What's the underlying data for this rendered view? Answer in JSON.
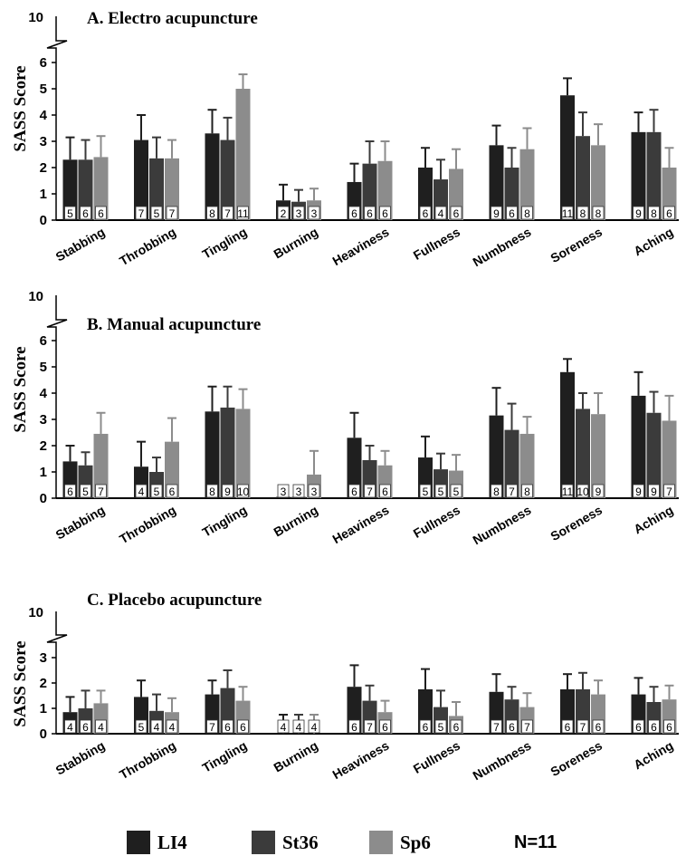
{
  "chart_data": [
    {
      "type": "bar",
      "title": "A. Electro acupuncture",
      "ylabel": "SASS Score",
      "ylim": [
        0,
        6
      ],
      "y_ticks": [
        "0",
        "1",
        "2",
        "3",
        "4",
        "5",
        "6"
      ],
      "y_break_label": "10",
      "categories": [
        "Stabbing",
        "Throbbing",
        "Tingling",
        "Burning",
        "Heaviness",
        "Fullness",
        "Numbness",
        "Soreness",
        "Aching"
      ],
      "series": [
        {
          "name": "LI4",
          "values": [
            2.3,
            3.05,
            3.3,
            0.75,
            1.45,
            2.0,
            2.85,
            4.75,
            3.35
          ],
          "errors": [
            0.85,
            0.95,
            0.9,
            0.6,
            0.7,
            0.75,
            0.75,
            0.65,
            0.75
          ],
          "n": [
            "5",
            "7",
            "8",
            "2",
            "6",
            "6",
            "9",
            "11",
            "9"
          ]
        },
        {
          "name": "St36",
          "values": [
            2.3,
            2.35,
            3.05,
            0.7,
            2.15,
            1.55,
            2.0,
            3.2,
            3.35
          ],
          "errors": [
            0.75,
            0.8,
            0.85,
            0.45,
            0.85,
            0.75,
            0.75,
            0.9,
            0.85
          ],
          "n": [
            "6",
            "5",
            "7",
            "3",
            "6",
            "4",
            "6",
            "8",
            "8"
          ]
        },
        {
          "name": "Sp6",
          "values": [
            2.4,
            2.35,
            5.0,
            0.75,
            2.25,
            1.95,
            2.7,
            2.85,
            2.0
          ],
          "errors": [
            0.8,
            0.7,
            0.55,
            0.45,
            0.75,
            0.75,
            0.8,
            0.8,
            0.75
          ],
          "n": [
            "6",
            "7",
            "11",
            "3",
            "6",
            "6",
            "8",
            "8",
            "6"
          ]
        }
      ]
    },
    {
      "type": "bar",
      "title": "B. Manual acupuncture",
      "ylabel": "SASS Score",
      "ylim": [
        0,
        6
      ],
      "y_ticks": [
        "0",
        "1",
        "2",
        "3",
        "4",
        "5",
        "6"
      ],
      "y_break_label": "10",
      "categories": [
        "Stabbing",
        "Throbbing",
        "Tingling",
        "Burning",
        "Heaviness",
        "Fullness",
        "Numbness",
        "Soreness",
        "Aching"
      ],
      "series": [
        {
          "name": "LI4",
          "values": [
            1.4,
            1.2,
            3.3,
            0.05,
            2.3,
            1.55,
            3.15,
            4.8,
            3.9
          ],
          "errors": [
            0.6,
            0.95,
            0.95,
            0.0,
            0.95,
            0.8,
            1.05,
            0.5,
            0.9
          ],
          "n": [
            "6",
            "4",
            "8",
            "3",
            "6",
            "5",
            "8",
            "11",
            "9"
          ]
        },
        {
          "name": "St36",
          "values": [
            1.25,
            1.0,
            3.45,
            0.05,
            1.45,
            1.1,
            2.6,
            3.4,
            3.25
          ],
          "errors": [
            0.5,
            0.55,
            0.8,
            0.0,
            0.55,
            0.6,
            1.0,
            0.6,
            0.8
          ],
          "n": [
            "5",
            "5",
            "9",
            "3",
            "7",
            "5",
            "7",
            "10",
            "9"
          ]
        },
        {
          "name": "Sp6",
          "values": [
            2.45,
            2.15,
            3.4,
            0.9,
            1.25,
            1.05,
            2.45,
            3.2,
            2.95
          ],
          "errors": [
            0.8,
            0.9,
            0.75,
            0.9,
            0.55,
            0.6,
            0.65,
            0.8,
            0.95
          ],
          "n": [
            "7",
            "6",
            "10",
            "3",
            "6",
            "5",
            "8",
            "9",
            "7"
          ]
        }
      ]
    },
    {
      "type": "bar",
      "title": "C. Placebo acupuncture",
      "ylabel": "SASS Score",
      "ylim": [
        0,
        3
      ],
      "y_ticks": [
        "0",
        "1",
        "2",
        "3"
      ],
      "y_break_label": "10",
      "categories": [
        "Stabbing",
        "Throbbing",
        "Tingling",
        "Burning",
        "Heaviness",
        "Fullness",
        "Numbness",
        "Soreness",
        "Aching"
      ],
      "series": [
        {
          "name": "LI4",
          "values": [
            0.85,
            1.45,
            1.55,
            0.0,
            1.85,
            1.75,
            1.65,
            1.75,
            1.55
          ],
          "errors": [
            0.6,
            0.65,
            0.55,
            0.75,
            0.85,
            0.8,
            0.7,
            0.6,
            0.65
          ],
          "n": [
            "4",
            "5",
            "7",
            "4",
            "6",
            "6",
            "7",
            "6",
            "6"
          ]
        },
        {
          "name": "St36",
          "values": [
            1.0,
            0.9,
            1.8,
            0.0,
            1.3,
            1.05,
            1.35,
            1.75,
            1.25
          ],
          "errors": [
            0.7,
            0.65,
            0.7,
            0.75,
            0.6,
            0.65,
            0.5,
            0.65,
            0.6
          ],
          "n": [
            "6",
            "4",
            "6",
            "4",
            "7",
            "5",
            "6",
            "7",
            "6"
          ]
        },
        {
          "name": "Sp6",
          "values": [
            1.2,
            0.85,
            1.3,
            0.0,
            0.85,
            0.7,
            1.05,
            1.55,
            1.35
          ],
          "errors": [
            0.5,
            0.55,
            0.55,
            0.75,
            0.45,
            0.55,
            0.55,
            0.55,
            0.55
          ],
          "n": [
            "4",
            "4",
            "6",
            "4",
            "6",
            "6",
            "7",
            "6",
            "6"
          ]
        }
      ]
    }
  ],
  "colors": {
    "LI4": "#1f1f1f",
    "St36": "#3b3b3b",
    "Sp6": "#8c8c8c"
  },
  "legend": {
    "items": [
      {
        "label": "LI4",
        "color": "#1f1f1f"
      },
      {
        "label": "St36",
        "color": "#3b3b3b"
      },
      {
        "label": "Sp6",
        "color": "#8c8c8c"
      }
    ],
    "n_label": "N=11"
  }
}
